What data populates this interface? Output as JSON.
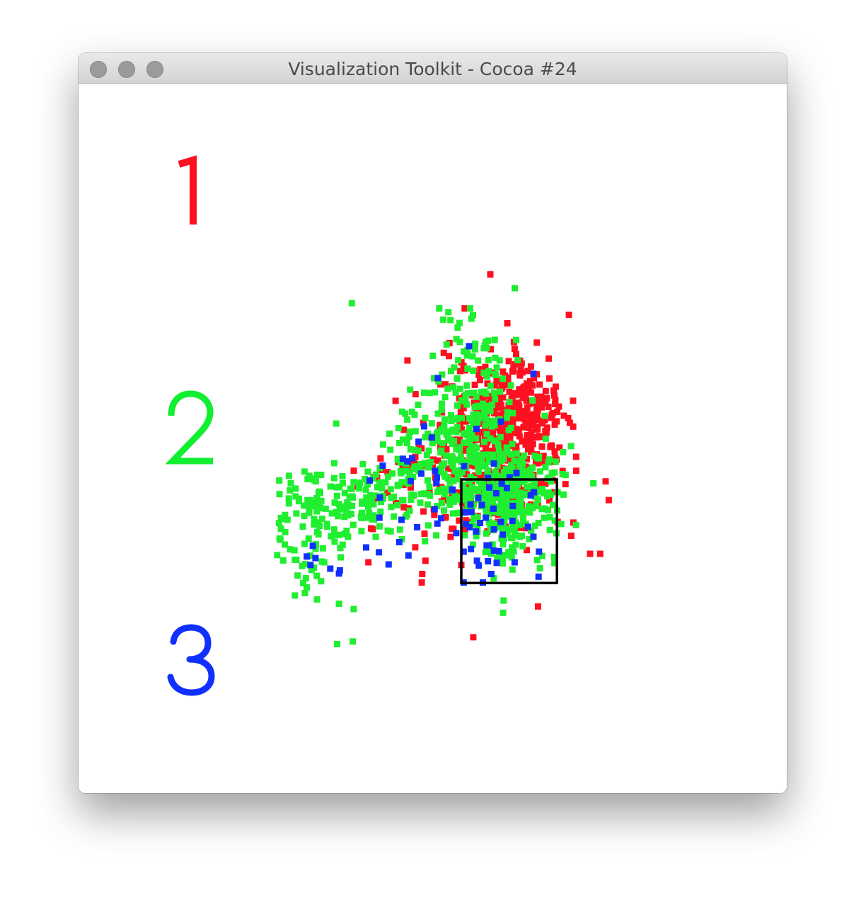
{
  "window": {
    "title": "Visualization Toolkit - Cocoa #24",
    "traffic_light_color": "#9b9b9b"
  },
  "labels": [
    {
      "text": "1",
      "color": "#ff1020"
    },
    {
      "text": "2",
      "color": "#10ef30"
    },
    {
      "text": "3",
      "color": "#1030ff"
    }
  ],
  "colors": {
    "red": "#ff1020",
    "green": "#20ee30",
    "blue": "#1030ff",
    "selection_box": "#000000"
  },
  "chart_data": {
    "type": "scatter",
    "title": "",
    "xlabel": "",
    "ylabel": "",
    "xlim": [
      0,
      1000
    ],
    "ylim": [
      0,
      1000
    ],
    "grid": false,
    "selection_box": {
      "x0": 540,
      "y0": 261,
      "x1": 748,
      "y1": 456
    },
    "series": [
      {
        "name": "1",
        "color": "#ff1020",
        "clusters": [
          {
            "cx": 640,
            "cy": 560,
            "sx": 60,
            "sy": 62,
            "n": 430
          },
          {
            "cx": 610,
            "cy": 420,
            "sx": 75,
            "sy": 45,
            "n": 110
          },
          {
            "cx": 460,
            "cy": 470,
            "sx": 60,
            "sy": 45,
            "n": 55
          }
        ],
        "points": [
          [
            603,
            842
          ],
          [
            774,
            766
          ],
          [
            423,
            680
          ],
          [
            656,
            702
          ],
          [
            397,
            604
          ],
          [
            744,
            598
          ],
          [
            453,
            481
          ],
          [
            820,
            316
          ],
          [
            842,
            316
          ],
          [
            779,
            350
          ],
          [
            454,
            262
          ],
          [
            462,
            303
          ],
          [
            707,
            217
          ],
          [
            566,
            159
          ],
          [
            540,
            295
          ],
          [
            338,
            300
          ],
          [
            366,
            474
          ],
          [
            455,
            278
          ],
          [
            640,
            750
          ],
          [
            736,
            572
          ]
        ]
      },
      {
        "name": "2",
        "color": "#20ee30",
        "clusters": [
          {
            "cx": 640,
            "cy": 420,
            "sx": 55,
            "sy": 50,
            "n": 320
          },
          {
            "cx": 510,
            "cy": 510,
            "sx": 55,
            "sy": 60,
            "n": 200
          },
          {
            "cx": 580,
            "cy": 640,
            "sx": 55,
            "sy": 70,
            "n": 90
          },
          {
            "cx": 330,
            "cy": 420,
            "sx": 70,
            "sy": 40,
            "n": 120
          },
          {
            "cx": 220,
            "cy": 370,
            "sx": 55,
            "sy": 50,
            "n": 90
          }
        ],
        "points": [
          [
            492,
            778
          ],
          [
            512,
            771
          ],
          [
            559,
            778
          ],
          [
            501,
            757
          ],
          [
            532,
            742
          ],
          [
            302,
            788
          ],
          [
            162,
            380
          ],
          [
            157,
            357
          ],
          [
            270,
            146
          ],
          [
            304,
            151
          ],
          [
            274,
            222
          ],
          [
            306,
            212
          ],
          [
            630,
            298
          ],
          [
            652,
            398
          ],
          [
            202,
            270
          ],
          [
            196,
            261
          ],
          [
            204,
            253
          ],
          [
            200,
            242
          ],
          [
            632,
            363
          ],
          [
            656,
            361
          ],
          [
            711,
            289
          ],
          [
            716,
            312
          ],
          [
            632,
            228
          ],
          [
            631,
            205
          ]
        ]
      },
      {
        "name": "3",
        "color": "#1030ff",
        "points": [
          [
            557,
            707
          ],
          [
            697,
            655
          ],
          [
            489,
            647
          ],
          [
            573,
            551
          ],
          [
            447,
            527
          ],
          [
            476,
            535
          ],
          [
            626,
            565
          ],
          [
            546,
            481
          ],
          [
            598,
            459
          ],
          [
            660,
            468
          ],
          [
            611,
            486
          ],
          [
            645,
            460
          ],
          [
            628,
            448
          ],
          [
            652,
            406
          ],
          [
            611,
            362
          ],
          [
            630,
            352
          ],
          [
            616,
            430
          ],
          [
            651,
            378
          ],
          [
            685,
            367
          ],
          [
            697,
            348
          ],
          [
            709,
            320
          ],
          [
            708,
            273
          ],
          [
            656,
            300
          ],
          [
            600,
            332
          ],
          [
            572,
            358
          ],
          [
            581,
            374
          ],
          [
            610,
            401
          ],
          [
            585,
            408
          ],
          [
            639,
            440
          ],
          [
            601,
            441
          ],
          [
            560,
            409
          ],
          [
            496,
            383
          ],
          [
            482,
            400
          ],
          [
            483,
            472
          ],
          [
            413,
            495
          ],
          [
            453,
            467
          ],
          [
            423,
            490
          ],
          [
            433,
            496
          ],
          [
            487,
            460
          ],
          [
            425,
            313
          ],
          [
            382,
            296
          ],
          [
            274,
            279
          ],
          [
            212,
            295
          ],
          [
            333,
            328
          ],
          [
            255,
            288
          ],
          [
            276,
            285
          ],
          [
            223,
            308
          ],
          [
            361,
            319
          ],
          [
            410,
            380
          ],
          [
            405,
            338
          ],
          [
            444,
            366
          ],
          [
            430,
            453
          ],
          [
            550,
            372
          ],
          [
            562,
            395
          ],
          [
            577,
            421
          ],
          [
            593,
            384
          ],
          [
            595,
            332
          ],
          [
            611,
            322
          ],
          [
            691,
            426
          ],
          [
            698,
            432
          ],
          [
            617,
            299
          ],
          [
            587,
            262
          ],
          [
            605,
            278
          ],
          [
            561,
            325
          ],
          [
            598,
            302
          ],
          [
            605,
            278
          ],
          [
            574,
            303
          ],
          [
            545,
            320
          ],
          [
            558,
            366
          ],
          [
            578,
            294
          ],
          [
            549,
            394
          ],
          [
            626,
            376
          ],
          [
            622,
            321
          ],
          [
            520,
            436
          ],
          [
            521,
            437
          ],
          [
            486,
            450
          ],
          [
            459,
            556
          ],
          [
            217,
            331
          ],
          [
            204,
            311
          ],
          [
            341,
            454
          ],
          [
            369,
            482
          ],
          [
            363,
            422
          ],
          [
            362,
            384
          ],
          [
            488,
            373
          ],
          [
            529,
            355
          ],
          [
            545,
            262
          ]
        ]
      }
    ]
  }
}
